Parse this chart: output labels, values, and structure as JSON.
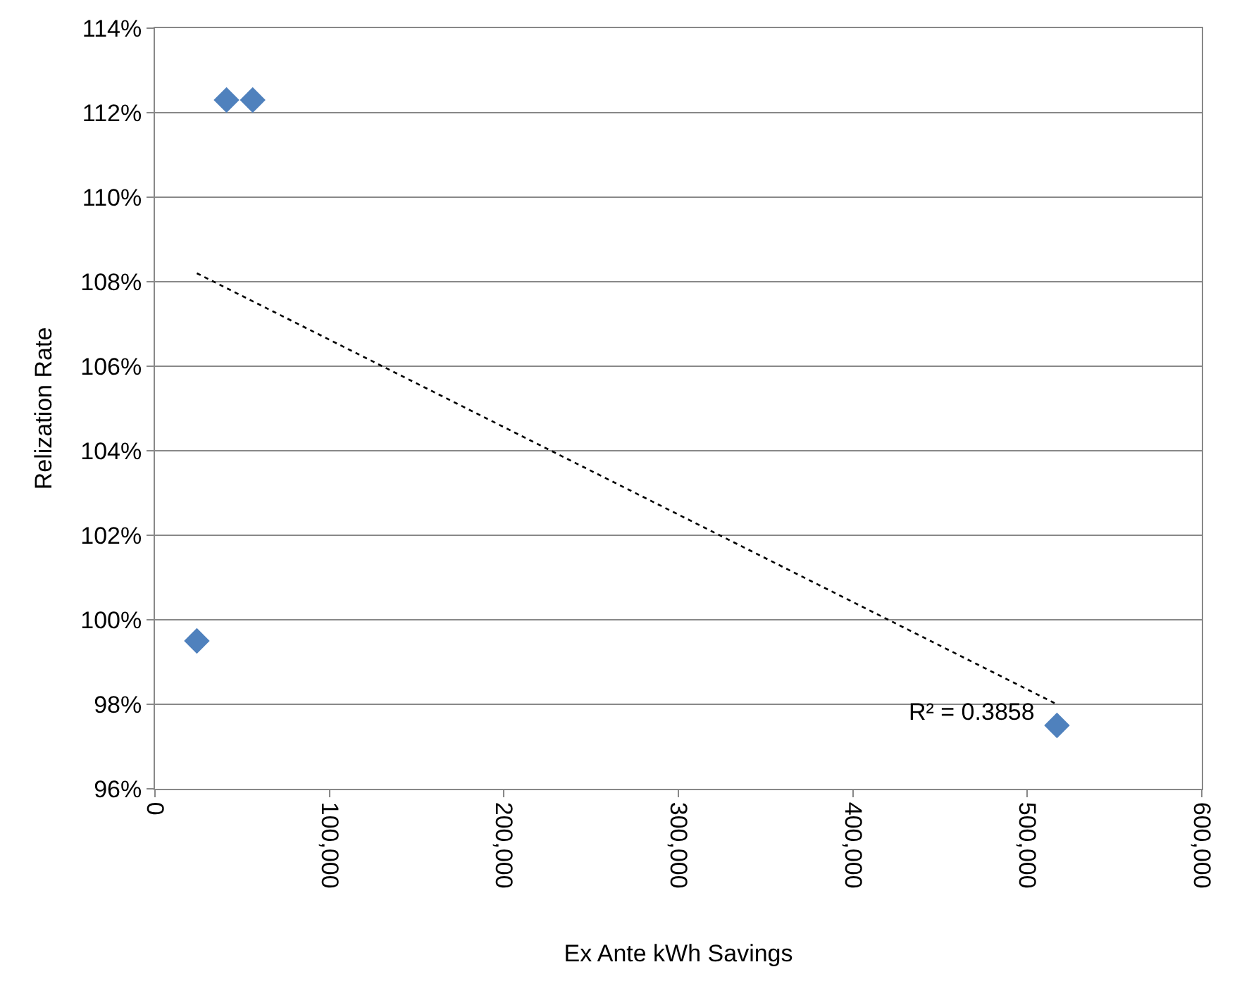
{
  "chart_data": {
    "type": "scatter",
    "xlabel": "Ex Ante kWh Savings",
    "ylabel": "Relization Rate",
    "grid": "y",
    "xlim": [
      0,
      600000
    ],
    "xticks": [
      0,
      {
        "value": 100000,
        "label": "100,000"
      },
      {
        "value": 200000,
        "label": "200,000"
      },
      {
        "value": 300000,
        "label": "300,000"
      },
      {
        "value": 400000,
        "label": "400,000"
      },
      {
        "value": 500000,
        "label": "500,000"
      },
      {
        "value": 600000,
        "label": "600,000"
      }
    ],
    "ylim": [
      96,
      114
    ],
    "yticks": [
      {
        "value": 96,
        "label": "96%"
      },
      {
        "value": 98,
        "label": "98%"
      },
      {
        "value": 100,
        "label": "100%"
      },
      {
        "value": 102,
        "label": "102%"
      },
      {
        "value": 104,
        "label": "104%"
      },
      {
        "value": 106,
        "label": "106%"
      },
      {
        "value": 108,
        "label": "108%"
      },
      {
        "value": 110,
        "label": "110%"
      },
      {
        "value": 112,
        "label": "112%"
      },
      {
        "value": 114,
        "label": "114%"
      }
    ],
    "series": [
      {
        "marker": "diamond",
        "color": "#4f81bd",
        "x": [
          24000,
          41000,
          56000,
          517000
        ],
        "values": [
          99.5,
          112.3,
          112.3,
          97.5
        ]
      },
      {
        "type": "line",
        "marker": "none",
        "color": "#000000",
        "line_style": "dotted",
        "x": [
          24000,
          517000
        ],
        "values": [
          108.2,
          98.0
        ]
      }
    ],
    "annotations": [
      "R² = 0.3858"
    ]
  }
}
